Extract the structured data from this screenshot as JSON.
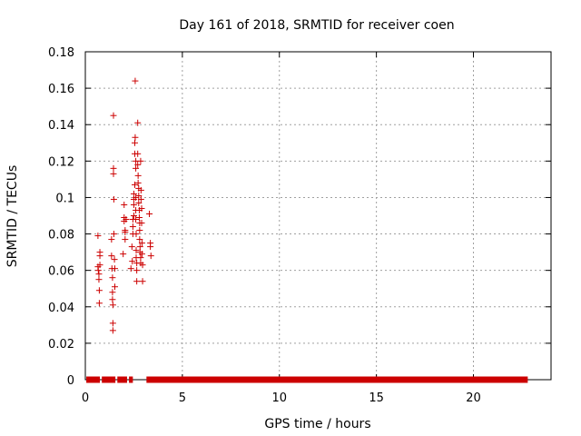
{
  "chart_data": {
    "type": "scatter",
    "title": "Day 161 of 2018, SRMTID for receiver coen",
    "xlabel": "GPS time / hours",
    "ylabel": "SRMTID / TECUs",
    "xlim": [
      0,
      24
    ],
    "ylim": [
      0,
      0.18
    ],
    "xticks": [
      0,
      5,
      10,
      15,
      20
    ],
    "xtick_labels": [
      "0",
      "5",
      "10",
      "15",
      "20"
    ],
    "yticks": [
      0,
      0.02,
      0.04,
      0.06,
      0.08,
      0.1,
      0.12,
      0.14,
      0.16,
      0.18
    ],
    "ytick_labels": [
      "0",
      "0.02",
      "0.04",
      "0.06",
      "0.08",
      "0.1",
      "0.12",
      "0.14",
      "0.16",
      "0.18"
    ],
    "grid": true,
    "legend": "none",
    "series": [
      {
        "marker": "plus",
        "color": "#cc0000",
        "points": [
          [
            0.65,
            0.079
          ],
          [
            0.65,
            0.062
          ],
          [
            0.67,
            0.06
          ],
          [
            0.7,
            0.058
          ],
          [
            0.7,
            0.055
          ],
          [
            0.72,
            0.049
          ],
          [
            0.72,
            0.042
          ],
          [
            0.75,
            0.07
          ],
          [
            0.75,
            0.068
          ],
          [
            0.75,
            0.063
          ],
          [
            1.35,
            0.077
          ],
          [
            1.35,
            0.068
          ],
          [
            1.37,
            0.061
          ],
          [
            1.4,
            0.056
          ],
          [
            1.4,
            0.048
          ],
          [
            1.4,
            0.044
          ],
          [
            1.42,
            0.041
          ],
          [
            1.42,
            0.031
          ],
          [
            1.42,
            0.027
          ],
          [
            1.45,
            0.145
          ],
          [
            1.45,
            0.116
          ],
          [
            1.45,
            0.113
          ],
          [
            1.47,
            0.099
          ],
          [
            1.47,
            0.08
          ],
          [
            1.5,
            0.066
          ],
          [
            1.52,
            0.061
          ],
          [
            1.52,
            0.051
          ],
          [
            1.95,
            0.069
          ],
          [
            2.0,
            0.096
          ],
          [
            2.0,
            0.089
          ],
          [
            2.0,
            0.087
          ],
          [
            2.05,
            0.082
          ],
          [
            2.05,
            0.081
          ],
          [
            2.05,
            0.077
          ],
          [
            2.1,
            0.088
          ],
          [
            2.35,
            0.061
          ],
          [
            2.4,
            0.073
          ],
          [
            2.42,
            0.065
          ],
          [
            2.45,
            0.08
          ],
          [
            2.45,
            0.084
          ],
          [
            2.45,
            0.088
          ],
          [
            2.5,
            0.09
          ],
          [
            2.5,
            0.096
          ],
          [
            2.5,
            0.099
          ],
          [
            2.5,
            0.102
          ],
          [
            2.55,
            0.107
          ],
          [
            2.55,
            0.124
          ],
          [
            2.55,
            0.13
          ],
          [
            2.57,
            0.133
          ],
          [
            2.57,
            0.164
          ],
          [
            2.6,
            0.116
          ],
          [
            2.6,
            0.12
          ],
          [
            2.6,
            0.1
          ],
          [
            2.6,
            0.093
          ],
          [
            2.6,
            0.088
          ],
          [
            2.62,
            0.08
          ],
          [
            2.62,
            0.071
          ],
          [
            2.62,
            0.067
          ],
          [
            2.65,
            0.064
          ],
          [
            2.65,
            0.06
          ],
          [
            2.65,
            0.054
          ],
          [
            2.7,
            0.141
          ],
          [
            2.7,
            0.124
          ],
          [
            2.7,
            0.118
          ],
          [
            2.72,
            0.112
          ],
          [
            2.72,
            0.108
          ],
          [
            2.75,
            0.105
          ],
          [
            2.75,
            0.101
          ],
          [
            2.75,
            0.097
          ],
          [
            2.78,
            0.093
          ],
          [
            2.78,
            0.089
          ],
          [
            2.8,
            0.086
          ],
          [
            2.8,
            0.082
          ],
          [
            2.8,
            0.077
          ],
          [
            2.82,
            0.073
          ],
          [
            2.82,
            0.07
          ],
          [
            2.85,
            0.067
          ],
          [
            2.85,
            0.064
          ],
          [
            2.85,
            0.12
          ],
          [
            2.87,
            0.104
          ],
          [
            2.87,
            0.099
          ],
          [
            2.9,
            0.094
          ],
          [
            2.9,
            0.086
          ],
          [
            2.92,
            0.075
          ],
          [
            2.92,
            0.069
          ],
          [
            2.95,
            0.063
          ],
          [
            2.95,
            0.054
          ],
          [
            3.3,
            0.091
          ],
          [
            3.35,
            0.075
          ],
          [
            3.35,
            0.073
          ],
          [
            3.38,
            0.068
          ]
        ],
        "zero_segments": [
          [
            0.05,
            0.75
          ],
          [
            0.85,
            1.55
          ],
          [
            1.65,
            2.15
          ],
          [
            2.25,
            2.45
          ],
          [
            3.15,
            22.8
          ]
        ]
      }
    ]
  }
}
